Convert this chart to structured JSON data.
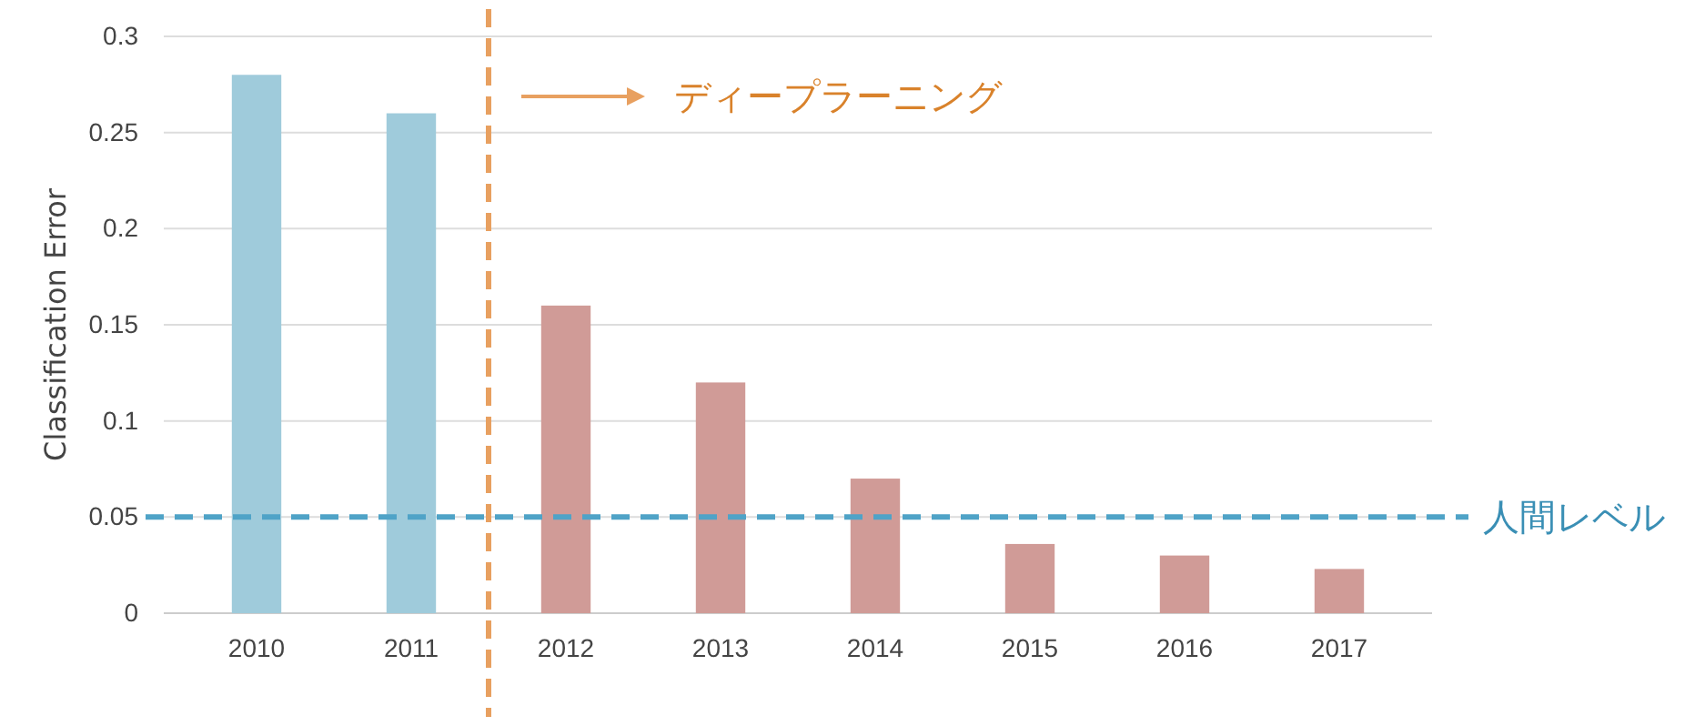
{
  "chart_data": {
    "type": "bar",
    "ylabel": "Classification Error",
    "x": [
      2010,
      2011,
      2012,
      2013,
      2014,
      2015,
      2016,
      2017
    ],
    "values": [
      0.28,
      0.26,
      0.16,
      0.12,
      0.07,
      0.036,
      0.03,
      0.023
    ],
    "colors": [
      "#9fcbdb",
      "#9fcbdb",
      "#d09b97",
      "#d09b97",
      "#d09b97",
      "#d09b97",
      "#d09b97",
      "#d09b97"
    ],
    "xlim": [
      2009.4,
      2017.6
    ],
    "xticks": [
      2010,
      2011,
      2012,
      2013,
      2014,
      2015,
      2016,
      2017
    ],
    "ylim": [
      0,
      0.3
    ],
    "yticks": [
      0,
      0.05,
      0.1,
      0.15,
      0.2,
      0.25,
      0.3
    ],
    "grid": "y",
    "annotations": [
      "ディープラーニング"
    ],
    "ref_lines": [
      {
        "axis": "x",
        "value": 2011.5,
        "color": "#e8a060",
        "line_style": "dashed"
      },
      {
        "axis": "y",
        "value": 0.05,
        "label": "人間レベル",
        "color": "#4fa3c7",
        "line_style": "dashed"
      }
    ]
  }
}
